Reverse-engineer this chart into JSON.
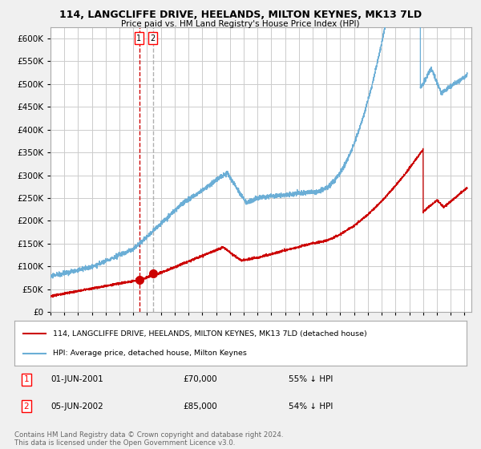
{
  "title": "114, LANGCLIFFE DRIVE, HEELANDS, MILTON KEYNES, MK13 7LD",
  "subtitle": "Price paid vs. HM Land Registry's House Price Index (HPI)",
  "legend_entry1": "114, LANGCLIFFE DRIVE, HEELANDS, MILTON KEYNES, MK13 7LD (detached house)",
  "legend_entry2": "HPI: Average price, detached house, Milton Keynes",
  "sale1_date": "01-JUN-2001",
  "sale1_price": 70000,
  "sale1_pct": "55% ↓ HPI",
  "sale2_date": "05-JUN-2002",
  "sale2_price": 85000,
  "sale2_pct": "54% ↓ HPI",
  "footer": "Contains HM Land Registry data © Crown copyright and database right 2024.\nThis data is licensed under the Open Government Licence v3.0.",
  "hpi_color": "#6baed6",
  "price_color": "#cc0000",
  "vline1_color": "#cc0000",
  "vline2_color": "#b0b0b0",
  "bg_color": "#f0f0f0",
  "plot_bg_color": "#ffffff",
  "grid_color": "#cccccc",
  "yticks": [
    0,
    50000,
    100000,
    150000,
    200000,
    250000,
    300000,
    350000,
    400000,
    450000,
    500000,
    550000,
    600000
  ],
  "sale1_x": 2001.42,
  "sale2_x": 2002.42
}
